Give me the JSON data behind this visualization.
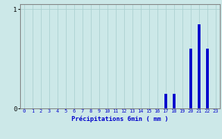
{
  "categories": [
    0,
    1,
    2,
    3,
    4,
    5,
    6,
    7,
    8,
    9,
    10,
    11,
    12,
    13,
    14,
    15,
    16,
    17,
    18,
    19,
    20,
    21,
    22,
    23
  ],
  "values": [
    0,
    0,
    0,
    0,
    0,
    0,
    0,
    0,
    0,
    0,
    0,
    0,
    0,
    0,
    0,
    0,
    0,
    0.15,
    0.15,
    0,
    0.6,
    0.85,
    0.6,
    0
  ],
  "bar_color": "#0000cc",
  "background_color": "#cce8e8",
  "grid_color": "#aacfcf",
  "axis_color": "#808080",
  "text_color": "#0000cc",
  "xlabel": "Précipitations 6min ( mm )",
  "ylim": [
    0,
    1.05
  ],
  "yticks": [
    0,
    1
  ],
  "xlim": [
    -0.5,
    23.5
  ],
  "bar_width": 0.35
}
